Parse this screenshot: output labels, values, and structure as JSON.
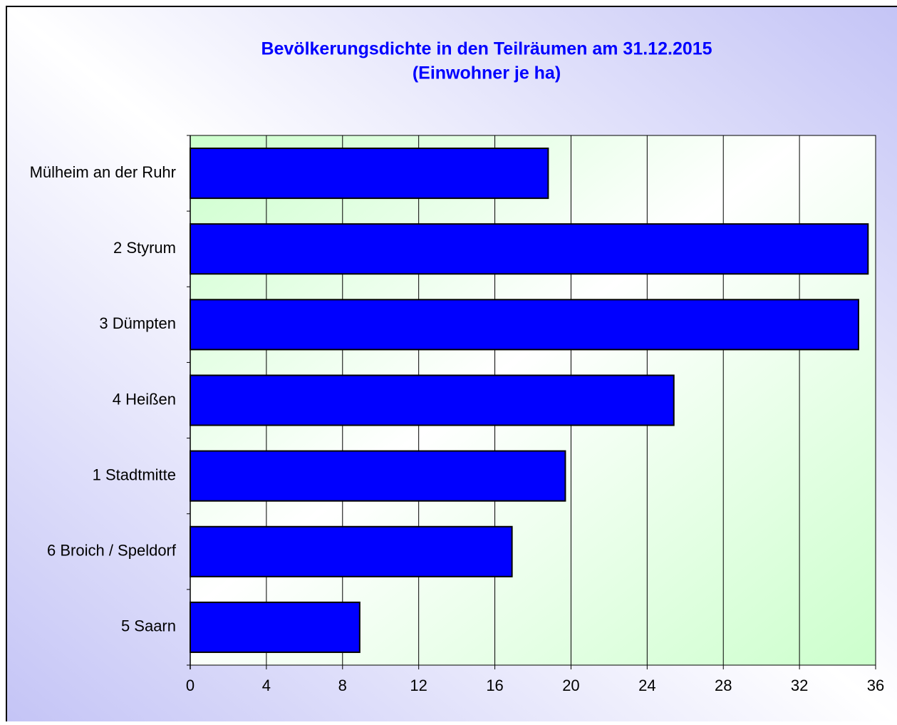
{
  "chart_data": {
    "type": "bar",
    "orientation": "horizontal",
    "title": "Bevölkerungsdichte in den Teilräumen am 31.12.2015",
    "subtitle": "(Einwohner je ha)",
    "categories": [
      "Mülheim an der Ruhr",
      "2  Styrum",
      "3  Dümpten",
      "4  Heißen",
      "1  Stadtmitte",
      "6  Broich / Speldorf",
      "5  Saarn"
    ],
    "values": [
      18.8,
      35.6,
      35.1,
      25.4,
      19.7,
      16.9,
      8.9
    ],
    "color": "#0000ff",
    "xlim": [
      0,
      36
    ],
    "xticks": [
      0,
      4,
      8,
      12,
      16,
      20,
      24,
      28,
      32,
      36
    ],
    "grid": true
  }
}
